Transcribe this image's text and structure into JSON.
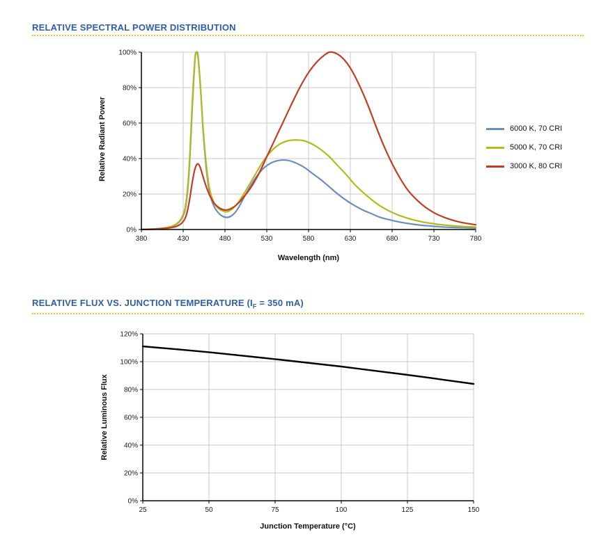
{
  "colors": {
    "heading": "#2e5fa8",
    "rule": "#f0c424",
    "grid": "#c9c9c9",
    "axis": "#000000",
    "tick_text": "#1a1a1a"
  },
  "section1": {
    "title": "RELATIVE SPECTRAL POWER DISTRIBUTION"
  },
  "section2": {
    "title_pre": "RELATIVE FLUX VS. JUNCTION TEMPERATURE (I",
    "title_sub": "F",
    "title_post": " = 350 mA)"
  },
  "chart_data": [
    {
      "type": "line",
      "title": "Relative Spectral Power Distribution",
      "xlabel": "Wavelength (nm)",
      "ylabel": "Relative Radiant Power",
      "xlim": [
        380,
        780
      ],
      "ylim": [
        0,
        100
      ],
      "xticks": [
        380,
        430,
        480,
        530,
        580,
        630,
        680,
        730,
        780
      ],
      "yticks": [
        0,
        20,
        40,
        60,
        80,
        100
      ],
      "ytick_format": "percent",
      "grid": true,
      "legend_position": "right",
      "series": [
        {
          "name": "6000 K, 70 CRI",
          "color": "#6c8ebf",
          "width": 2.2,
          "points": [
            [
              380,
              0
            ],
            [
              395,
              0.3
            ],
            [
              405,
              0.7
            ],
            [
              415,
              1.5
            ],
            [
              422,
              3
            ],
            [
              428,
              6
            ],
            [
              433,
              13
            ],
            [
              437,
              32
            ],
            [
              441,
              70
            ],
            [
              444,
              95
            ],
            [
              446,
              100
            ],
            [
              448,
              97
            ],
            [
              451,
              78
            ],
            [
              454,
              55
            ],
            [
              458,
              33
            ],
            [
              462,
              20
            ],
            [
              467,
              13
            ],
            [
              472,
              9.5
            ],
            [
              477,
              7.5
            ],
            [
              482,
              6.8
            ],
            [
              487,
              7.5
            ],
            [
              492,
              9.5
            ],
            [
              497,
              13
            ],
            [
              505,
              20
            ],
            [
              515,
              28
            ],
            [
              525,
              34
            ],
            [
              535,
              37.5
            ],
            [
              545,
              39
            ],
            [
              555,
              39
            ],
            [
              565,
              37.5
            ],
            [
              575,
              35
            ],
            [
              585,
              31.5
            ],
            [
              595,
              28
            ],
            [
              605,
              24
            ],
            [
              615,
              20
            ],
            [
              625,
              16.5
            ],
            [
              635,
              13.5
            ],
            [
              645,
              11
            ],
            [
              655,
              9
            ],
            [
              665,
              7
            ],
            [
              675,
              5.7
            ],
            [
              685,
              4.6
            ],
            [
              695,
              3.7
            ],
            [
              705,
              3
            ],
            [
              715,
              2.4
            ],
            [
              725,
              2
            ],
            [
              735,
              1.6
            ],
            [
              745,
              1.3
            ],
            [
              755,
              1.1
            ],
            [
              765,
              1
            ],
            [
              780,
              0.8
            ]
          ]
        },
        {
          "name": "5000 K, 70 CRI",
          "color": "#b3ba1e",
          "width": 2.2,
          "points": [
            [
              380,
              0
            ],
            [
              395,
              0.3
            ],
            [
              405,
              0.7
            ],
            [
              415,
              1.6
            ],
            [
              422,
              3.2
            ],
            [
              428,
              6.5
            ],
            [
              433,
              14
            ],
            [
              437,
              34
            ],
            [
              441,
              72
            ],
            [
              444,
              96
            ],
            [
              446,
              100
            ],
            [
              448,
              96
            ],
            [
              451,
              78
            ],
            [
              454,
              56
            ],
            [
              458,
              35
            ],
            [
              462,
              22
            ],
            [
              467,
              15
            ],
            [
              472,
              12
            ],
            [
              477,
              10.5
            ],
            [
              482,
              10
            ],
            [
              487,
              11
            ],
            [
              492,
              13
            ],
            [
              497,
              16
            ],
            [
              505,
              22
            ],
            [
              515,
              30
            ],
            [
              525,
              38
            ],
            [
              535,
              44
            ],
            [
              545,
              48
            ],
            [
              555,
              50
            ],
            [
              565,
              50.5
            ],
            [
              575,
              50
            ],
            [
              585,
              48
            ],
            [
              595,
              45
            ],
            [
              605,
              41
            ],
            [
              615,
              36
            ],
            [
              625,
              31
            ],
            [
              635,
              25.5
            ],
            [
              645,
              21
            ],
            [
              655,
              17
            ],
            [
              665,
              13.5
            ],
            [
              675,
              10.8
            ],
            [
              685,
              8.6
            ],
            [
              695,
              6.9
            ],
            [
              705,
              5.5
            ],
            [
              715,
              4.4
            ],
            [
              725,
              3.6
            ],
            [
              735,
              2.9
            ],
            [
              745,
              2.4
            ],
            [
              755,
              2
            ],
            [
              765,
              1.7
            ],
            [
              780,
              1.4
            ]
          ]
        },
        {
          "name": "3000 K, 80 CRI",
          "color": "#c43c21",
          "width": 2.2,
          "points": [
            [
              380,
              0
            ],
            [
              395,
              0.2
            ],
            [
              405,
              0.5
            ],
            [
              415,
              1
            ],
            [
              422,
              1.8
            ],
            [
              428,
              3.5
            ],
            [
              433,
              7
            ],
            [
              437,
              15
            ],
            [
              441,
              27
            ],
            [
              444,
              34
            ],
            [
              447,
              37
            ],
            [
              450,
              35.5
            ],
            [
              453,
              31
            ],
            [
              457,
              25
            ],
            [
              461,
              20
            ],
            [
              466,
              15.5
            ],
            [
              471,
              13
            ],
            [
              476,
              11.5
            ],
            [
              482,
              11
            ],
            [
              488,
              12
            ],
            [
              494,
              14
            ],
            [
              500,
              17
            ],
            [
              510,
              23
            ],
            [
              520,
              31
            ],
            [
              530,
              41
            ],
            [
              540,
              51
            ],
            [
              550,
              61
            ],
            [
              560,
              71
            ],
            [
              570,
              80.5
            ],
            [
              580,
              88.5
            ],
            [
              590,
              94.5
            ],
            [
              598,
              98
            ],
            [
              605,
              100
            ],
            [
              612,
              99.5
            ],
            [
              620,
              97
            ],
            [
              628,
              92.5
            ],
            [
              636,
              86
            ],
            [
              644,
              78
            ],
            [
              652,
              69
            ],
            [
              660,
              59
            ],
            [
              668,
              49.5
            ],
            [
              676,
              41
            ],
            [
              684,
              33.5
            ],
            [
              692,
              27
            ],
            [
              700,
              21.5
            ],
            [
              710,
              16.5
            ],
            [
              720,
              12.5
            ],
            [
              730,
              9.5
            ],
            [
              740,
              7.3
            ],
            [
              750,
              5.6
            ],
            [
              760,
              4.3
            ],
            [
              770,
              3.4
            ],
            [
              780,
              2.7
            ]
          ]
        }
      ]
    },
    {
      "type": "line",
      "title": "Relative Flux vs. Junction Temperature (IF = 350 mA)",
      "xlabel": "Junction Temperature (°C)",
      "ylabel": "Relative Luminous Flux",
      "xlim": [
        25,
        150
      ],
      "ylim": [
        0,
        120
      ],
      "xticks": [
        25,
        50,
        75,
        100,
        125,
        150
      ],
      "yticks": [
        0,
        20,
        40,
        60,
        80,
        100,
        120
      ],
      "ytick_format": "percent",
      "grid": true,
      "legend_position": "none",
      "series": [
        {
          "name": "Relative Luminous Flux",
          "color": "#000000",
          "width": 2.4,
          "points": [
            [
              25,
              111
            ],
            [
              50,
              106.8
            ],
            [
              75,
              101.8
            ],
            [
              100,
              96.5
            ],
            [
              125,
              90.5
            ],
            [
              150,
              84
            ]
          ]
        }
      ]
    }
  ]
}
